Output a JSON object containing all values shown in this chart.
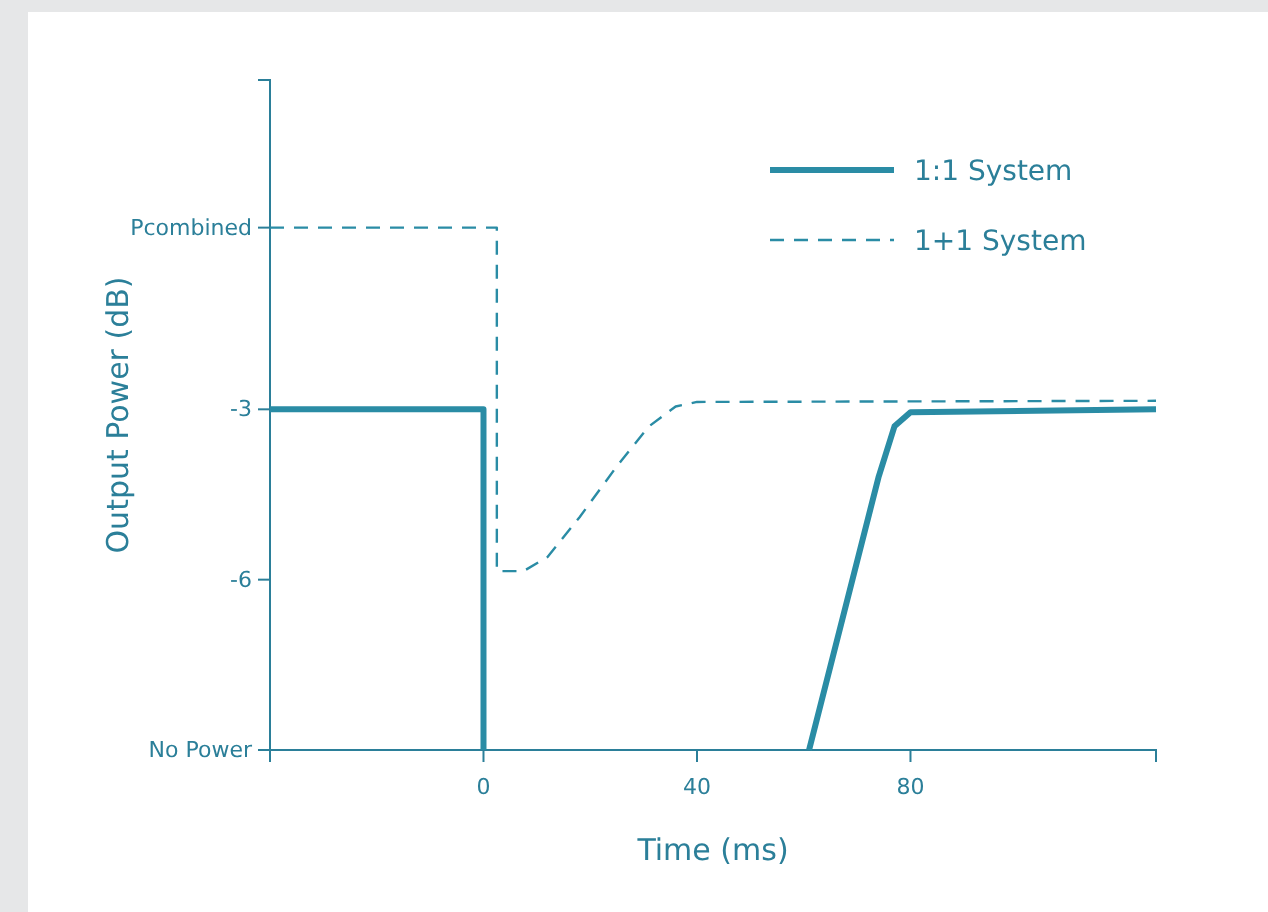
{
  "chart_data": {
    "type": "line",
    "xlabel": "Time (ms)",
    "ylabel": "Output Power (dB)",
    "xlim": [
      -40,
      126
    ],
    "xticks": [
      0,
      40,
      80
    ],
    "ylim": [
      -9,
      2.8
    ],
    "yticks": [
      {
        "value": -9,
        "label": "No Power"
      },
      -6,
      -3,
      {
        "value": 0.2,
        "label": "Pcombined"
      }
    ],
    "legend": "top right",
    "grid": false,
    "series": [
      {
        "name": "1:1 System",
        "color": "#2a8ca5",
        "line_style": "solid",
        "x": [
          -40,
          0,
          0,
          null,
          61,
          74,
          77,
          80,
          126
        ],
        "values": [
          -3,
          -3,
          -9,
          null,
          -9,
          -4.2,
          -3.3,
          -3.05,
          -3
        ]
      },
      {
        "name": "1+1 System",
        "color": "#2a8ca5",
        "line_style": "dashed",
        "x": [
          -40,
          2.5,
          2.5,
          7.5,
          12,
          18,
          25,
          31,
          36,
          40,
          126
        ],
        "values": [
          0.2,
          0.2,
          -5.85,
          -5.85,
          -5.6,
          -4.9,
          -4,
          -3.3,
          -2.95,
          -2.87,
          -2.85
        ]
      }
    ]
  }
}
